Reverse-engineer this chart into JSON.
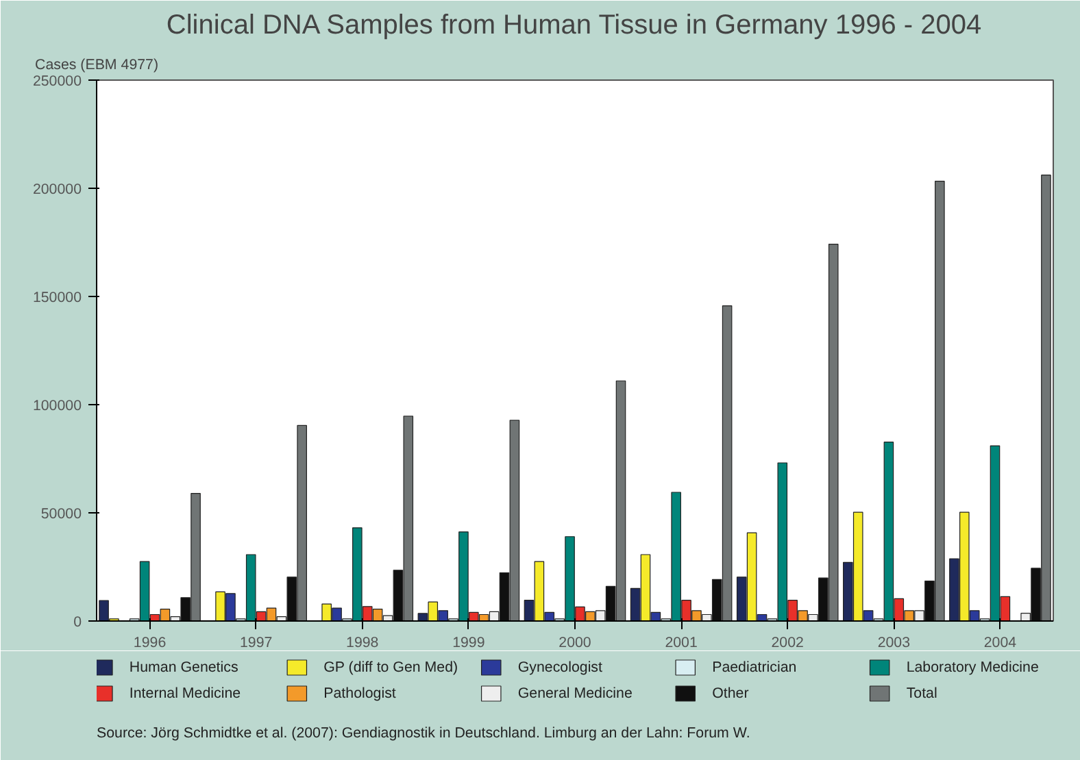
{
  "chart_data": {
    "type": "bar",
    "title": "Clinical DNA Samples from Human Tissue in Germany 1996 - 2004",
    "ylabel": "Cases (EBM 4977)",
    "categories": [
      "1996",
      "1997",
      "1998",
      "1999",
      "2000",
      "2001",
      "2002",
      "2003",
      "2004"
    ],
    "series": [
      {
        "name": "Human Genetics",
        "color": "#1f2a5c",
        "values": [
          9500,
          0,
          0,
          3500,
          9600,
          15100,
          20300,
          27100,
          28800
        ]
      },
      {
        "name": "GP (diff to Gen Med)",
        "color": "#f5ea2a",
        "values": [
          1000,
          13500,
          7900,
          8800,
          27500,
          30700,
          40800,
          50300,
          50300
        ]
      },
      {
        "name": "Gynecologist",
        "color": "#2b3a9a",
        "values": [
          0,
          12700,
          6000,
          4800,
          4000,
          4000,
          3000,
          4800,
          4800
        ]
      },
      {
        "name": "Paediatrician",
        "color": "#d8eef2",
        "values": [
          1000,
          1000,
          1000,
          1000,
          1000,
          1000,
          1000,
          1000,
          1000
        ]
      },
      {
        "name": "Laboratory Medicine",
        "color": "#00857a",
        "values": [
          27500,
          30700,
          43100,
          41200,
          39000,
          59500,
          73100,
          82700,
          81000
        ]
      },
      {
        "name": "Internal Medicine",
        "color": "#e8302a",
        "values": [
          3000,
          4300,
          6700,
          4000,
          6500,
          9600,
          9600,
          10300,
          11300
        ]
      },
      {
        "name": "Pathologist",
        "color": "#f39a2a",
        "values": [
          5500,
          6000,
          5500,
          3000,
          4300,
          4800,
          4800,
          4800,
          0
        ]
      },
      {
        "name": "General Medicine",
        "color": "#eeeeee",
        "values": [
          2000,
          2000,
          2500,
          4300,
          4800,
          3000,
          3000,
          4800,
          3600
        ]
      },
      {
        "name": "Other",
        "color": "#101010",
        "values": [
          10800,
          20300,
          23500,
          22300,
          16000,
          19200,
          19900,
          18500,
          24400
        ]
      },
      {
        "name": "Total",
        "color": "#707575",
        "values": [
          59000,
          90400,
          94700,
          92800,
          111000,
          145700,
          174200,
          203300,
          206100
        ]
      }
    ],
    "ylim": [
      0,
      250000
    ],
    "yticks": [
      0,
      50000,
      100000,
      150000,
      200000,
      250000
    ],
    "grid": false,
    "legend": "bottom",
    "annotations": [
      "Source: Jörg Schmidtke et al. (2007): Gendiagnostik in Deutschland. Limburg an der Lahn: Forum W."
    ]
  }
}
